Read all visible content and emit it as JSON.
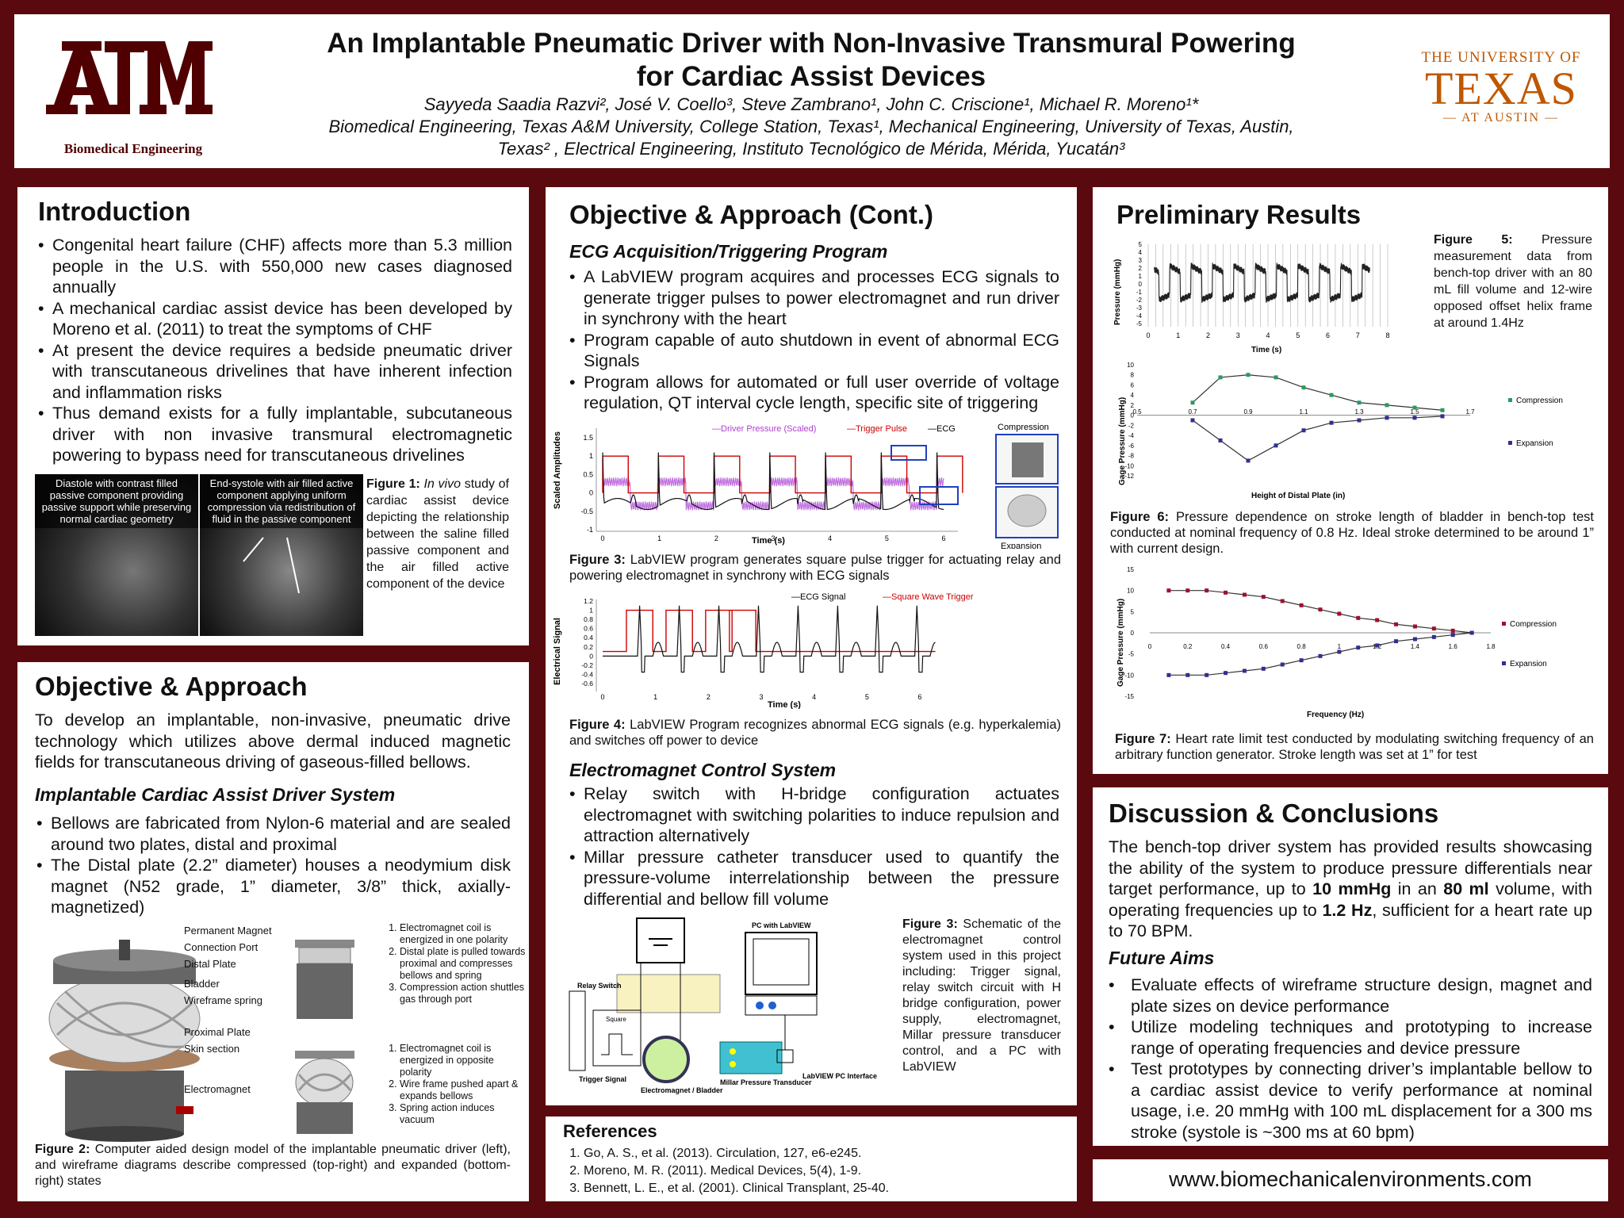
{
  "header": {
    "title_line1": "An Implantable Pneumatic Driver with Non-Invasive Transmural Powering",
    "title_line2": "for Cardiac Assist Devices",
    "authors": "Sayyeda Saadia Razvi², José V. Coello³, Steve Zambrano¹, John C. Criscione¹, Michael R. Moreno¹*",
    "affil_line1": "Biomedical Engineering, Texas A&M University, College Station, Texas¹, Mechanical Engineering, University of Texas, Austin,",
    "affil_line2": "Texas² , Electrical Engineering, Instituto Tecnológico de Mérida, Mérida, Yucatán³",
    "left_logo_text": "Biomedical Engineering",
    "right_logo_top": "THE UNIVERSITY OF",
    "right_logo_main": "TEXAS",
    "right_logo_bottom": "AT AUSTIN",
    "maroon": "#500000",
    "burnt_orange": "#bf5700"
  },
  "intro": {
    "heading": "Introduction",
    "bullets": [
      "Congenital heart failure (CHF) affects more than 5.3 million people in the U.S. with 550,000 new cases diagnosed annually",
      "A mechanical cardiac assist device has been developed by Moreno et al. (2011) to treat the symptoms of CHF",
      "At present the device requires a bedside pneumatic driver with transcutaneous drivelines that have inherent infection and inflammation risks",
      "Thus demand exists for a fully implantable, subcutaneous driver with non invasive transmural electromagnetic powering to bypass need for transcutaneous drivelines"
    ],
    "img1_caption": "Diastole with contrast  filled passive component providing passive support while preserving normal cardiac geometry",
    "img2_caption": "End-systole with air filled active component applying uniform compression via redistribution of fluid in the passive component",
    "fig1_label": "Figure 1:",
    "fig1_italic": "In vivo",
    "fig1_text": "study of cardiac assist device depicting the relationship between the saline filled passive component and the air filled active component of the device"
  },
  "objective": {
    "heading": "Objective & Approach",
    "text": "To develop an implantable, non-invasive, pneumatic drive technology which utilizes  above dermal induced magnetic fields for transcutaneous driving of gaseous-filled bellows.",
    "subheading": "Implantable Cardiac Assist Driver System",
    "bullets": [
      "Bellows are fabricated from Nylon-6 material and are sealed around  two plates, distal and proximal",
      "The Distal plate (2.2” diameter) houses a neodymium disk magnet (N52 grade, 1” diameter, 3/8” thick,  axially-magnetized)"
    ],
    "labels": [
      "Permanent Magnet",
      "Connection Port",
      "Distal Plate",
      "Bladder",
      "Wireframe spring",
      "Proximal Plate",
      "Skin section",
      "Electromagnet"
    ],
    "list_top": [
      "Electromagnet coil is energized in one polarity",
      "Distal plate is pulled towards proximal and compresses bellows and spring",
      "Compression action shuttles gas through port"
    ],
    "list_bottom": [
      "Electromagnet coil is energized in opposite polarity",
      "Wire frame pushed apart & expands bellows",
      "Spring action induces vacuum"
    ],
    "fig2_label": "Figure 2:",
    "fig2_text": "Computer aided design model of the implantable pneumatic driver (left), and wireframe diagrams describe compressed (top-right) and expanded (bottom-right) states"
  },
  "objc": {
    "heading": "Objective & Approach (Cont.)",
    "sub1": "ECG Acquisition/Triggering Program",
    "bullets1": [
      "A LabVIEW program acquires and processes ECG signals to generate trigger pulses to power electromagnet and run driver in synchrony with the heart",
      "Program capable of auto shutdown in event of abnormal ECG Signals",
      "Program allows for automated or full user override of voltage regulation, QT interval cycle length, specific site of triggering"
    ],
    "fig3_legend": [
      "Driver Pressure (Scaled)",
      "Trigger Pulse",
      "ECG"
    ],
    "fig3_xlabel": "Time (s)",
    "fig3_ylabel": "Scaled Amplitudes",
    "fig3_yticks": [
      "1.5",
      "1",
      "0.5",
      "0",
      "-0.5",
      "-1"
    ],
    "fig3_xticks": [
      "0",
      "1",
      "2",
      "3",
      "4",
      "5",
      "6"
    ],
    "compression_label": "Compression",
    "expansion_label": "Expansion",
    "fig3_label": "Figure 3:",
    "fig3_text": "LabVIEW program generates square pulse trigger for actuating relay and powering electromagnet in synchrony with ECG signals",
    "fig4_legend": [
      "ECG Signal",
      "Square Wave Trigger"
    ],
    "fig4_xlabel": "Time (s)",
    "fig4_ylabel": "Electrical Signal",
    "fig4_yticks": [
      "1.2",
      "1",
      "0.8",
      "0.6",
      "0.4",
      "0.2",
      "0",
      "-0.2",
      "-0.4",
      "-0.6"
    ],
    "fig4_xticks": [
      "0",
      "1",
      "2",
      "3",
      "4",
      "5",
      "6"
    ],
    "fig4_label": "Figure 4:",
    "fig4_text": "LabVIEW Program recognizes abnormal ECG signals (e.g. hyperkalemia) and switches off power to device",
    "sub2": "Electromagnet Control System",
    "bullets2": [
      "Relay switch with H-bridge configuration actuates electromagnet with switching polarities to induce repulsion and attraction alternatively",
      "Millar pressure catheter transducer used to quantify the pressure-volume interrelationship between the pressure differential and bellow fill volume"
    ],
    "schem_labels": {
      "pc": "PC with LabVIEW",
      "relay": "Relay Switch",
      "square": "Square",
      "trigger": "Trigger Signal",
      "em": "Electromagnet / Bladder",
      "millar": "Millar Pressure Transducer",
      "labview": "LabVIEW PC Interface"
    },
    "fig3b_label": "Figure 3:",
    "fig3b_text": "Schematic of the electromagnet control system used in this project including: Trigger signal, relay switch circuit with H bridge configuration, power supply, electromagnet, Millar pressure transducer control, and a PC with LabVIEW"
  },
  "refs": {
    "heading": "References",
    "items": [
      "Go, A. S., et al. (2013). Circulation, 127, e6-e245.",
      "Moreno, M. R. (2011). Medical Devices, 5(4), 1-9.",
      "Bennett, L. E., et al. (2001). Clinical Transplant, 25-40."
    ]
  },
  "results": {
    "heading": "Preliminary Results",
    "fig5_label": "Figure 5:",
    "fig5_text": "Pressure measurement data from bench-top driver with an 80 mL fill volume and 12-wire opposed offset helix frame at around 1.4Hz",
    "fig5_ylabel": "Pressure (mmHg)",
    "fig5_xlabel": "Time (s)",
    "fig5_yticks": [
      "5",
      "4",
      "3",
      "2",
      "1",
      "0",
      "-1",
      "-2",
      "-3",
      "-4",
      "-5"
    ],
    "fig5_xticks": [
      "0",
      "1",
      "2",
      "3",
      "4",
      "5",
      "6",
      "7",
      "8"
    ],
    "fig6_ylabel": "Gage Pressure (mmHg)",
    "fig6_xlabel": "Height of Distal Plate (in)",
    "fig6_yticks": [
      "10",
      "8",
      "6",
      "4",
      "2",
      "0",
      "-2",
      "-4",
      "-6",
      "-8",
      "-10",
      "-12"
    ],
    "fig6_xticks": [
      "0.5",
      "0.7",
      "0.9",
      "1.1",
      "1.3",
      "1.5",
      "1.7"
    ],
    "fig6_legend": [
      "Compression",
      "Expansion"
    ],
    "fig6_label": "Figure 6:",
    "fig6_text": "Pressure dependence on stroke length of bladder in bench-top test conducted at nominal frequency of 0.8 Hz. Ideal stroke determined to be around 1” with current design.",
    "fig7_ylabel": "Gage Pressure (mmHg)",
    "fig7_xlabel": "Frequency (Hz)",
    "fig7_yticks": [
      "15",
      "10",
      "5",
      "0",
      "-5",
      "-10",
      "-15"
    ],
    "fig7_xticks": [
      "0",
      "0.2",
      "0.4",
      "0.6",
      "0.8",
      "1",
      "1.2",
      "1.4",
      "1.6",
      "1.8"
    ],
    "fig7_legend": [
      "Compression",
      "Expansion"
    ],
    "fig7_label": "Figure 7:",
    "fig7_text": "Heart rate limit test conducted by modulating switching frequency of an arbitrary function generator. Stroke length was set at 1” for test"
  },
  "chart_data": [
    {
      "type": "scatter",
      "name_ref": "fig6",
      "x": [
        0.7,
        0.8,
        0.9,
        1.0,
        1.1,
        1.2,
        1.3,
        1.4,
        1.5,
        1.6
      ],
      "series": [
        {
          "name": "Compression",
          "values": [
            2.5,
            7.5,
            8,
            7.5,
            5.5,
            4,
            2.5,
            2,
            1.5,
            1
          ]
        },
        {
          "name": "Expansion",
          "values": [
            -1,
            -5,
            -9,
            -6,
            -3,
            -1.5,
            -1,
            -0.5,
            -0.5,
            -0.2
          ]
        }
      ],
      "xlim": [
        0.5,
        1.7
      ],
      "ylim": [
        -12,
        10
      ]
    },
    {
      "type": "scatter",
      "name_ref": "fig7",
      "x": [
        0.1,
        0.2,
        0.3,
        0.4,
        0.5,
        0.6,
        0.7,
        0.8,
        0.9,
        1.0,
        1.1,
        1.2,
        1.3,
        1.4,
        1.5,
        1.6,
        1.7
      ],
      "series": [
        {
          "name": "Compression",
          "values": [
            10,
            10,
            10,
            9.5,
            9,
            8.5,
            7.5,
            6.5,
            5.5,
            4.5,
            3.5,
            3,
            2,
            1.5,
            1,
            0.5,
            0
          ]
        },
        {
          "name": "Expansion",
          "values": [
            -10,
            -10,
            -10,
            -9.5,
            -9,
            -8.5,
            -7.5,
            -6.5,
            -5.5,
            -4.5,
            -3.5,
            -3,
            -2,
            -1.5,
            -1,
            -0.5,
            0
          ]
        }
      ],
      "xlim": [
        0,
        1.8
      ],
      "ylim": [
        -15,
        15
      ]
    }
  ],
  "discussion": {
    "heading": "Discussion & Conclusions",
    "p_a": "The bench-top driver system has provided results showcasing the ability of the system to produce pressure differentials near target performance, up to ",
    "p_b1": "10 mmHg",
    "p_c": " in an ",
    "p_b2": "80 ml",
    "p_d": " volume, with operating frequencies up to ",
    "p_b3": "1.2 Hz",
    "p_e": ", sufficient for a heart rate up to 70 BPM.",
    "sub": "Future Aims",
    "bullets": [
      "Evaluate effects of wireframe structure design, magnet and plate sizes on device performance",
      "Utilize modeling techniques and prototyping to increase range of operating frequencies and  device pressure",
      "Test prototypes by connecting driver’s implantable bellow to a cardiac assist device to verify performance at nominal usage, i.e. 20 mmHg with 100 mL displacement for a 300 ms stroke (systole is ~300 ms at 60 bpm)"
    ]
  },
  "website": "www.biomechanicalenvironments.com"
}
